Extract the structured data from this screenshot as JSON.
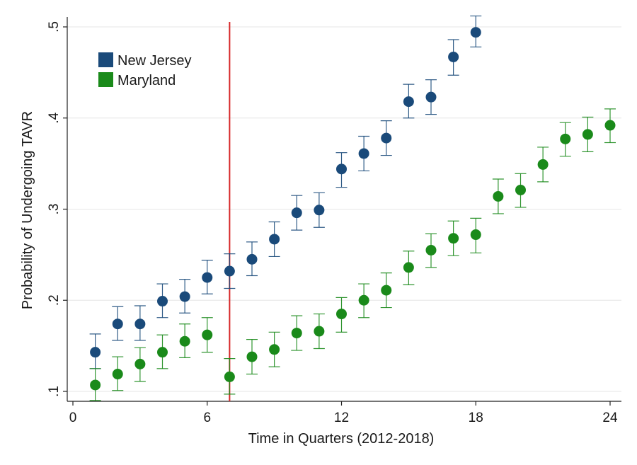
{
  "chart_data": {
    "type": "scatter",
    "title": "",
    "xlabel": "Time in Quarters (2012-2018)",
    "ylabel": "Probability  of Undergoing TAVR",
    "xlim": [
      0,
      24
    ],
    "ylim": [
      0.1,
      0.5
    ],
    "x_ticks": [
      0,
      6,
      12,
      18,
      24
    ],
    "x_tick_labels": [
      "0",
      "6",
      "12",
      "18",
      "24"
    ],
    "y_ticks": [
      0.1,
      0.2,
      0.3,
      0.4,
      0.5
    ],
    "y_tick_labels": [
      ".1",
      ".2",
      ".3",
      ".4",
      ".5"
    ],
    "grid": true,
    "legend_position": "top-left",
    "vertical_line": {
      "x": 7,
      "color": "#d62728"
    },
    "series": [
      {
        "name": "New Jersey",
        "color": "#1a4a7a",
        "points": [
          {
            "x": 1,
            "y": 0.143,
            "lo": 0.125,
            "hi": 0.163
          },
          {
            "x": 2,
            "y": 0.174,
            "lo": 0.156,
            "hi": 0.193
          },
          {
            "x": 3,
            "y": 0.174,
            "lo": 0.156,
            "hi": 0.194
          },
          {
            "x": 4,
            "y": 0.199,
            "lo": 0.181,
            "hi": 0.218
          },
          {
            "x": 5,
            "y": 0.204,
            "lo": 0.186,
            "hi": 0.223
          },
          {
            "x": 6,
            "y": 0.225,
            "lo": 0.207,
            "hi": 0.244
          },
          {
            "x": 7,
            "y": 0.232,
            "lo": 0.213,
            "hi": 0.251
          },
          {
            "x": 8,
            "y": 0.245,
            "lo": 0.227,
            "hi": 0.264
          },
          {
            "x": 9,
            "y": 0.267,
            "lo": 0.248,
            "hi": 0.286
          },
          {
            "x": 10,
            "y": 0.296,
            "lo": 0.277,
            "hi": 0.315
          },
          {
            "x": 11,
            "y": 0.299,
            "lo": 0.28,
            "hi": 0.318
          },
          {
            "x": 12,
            "y": 0.344,
            "lo": 0.324,
            "hi": 0.362
          },
          {
            "x": 13,
            "y": 0.361,
            "lo": 0.342,
            "hi": 0.38
          },
          {
            "x": 14,
            "y": 0.378,
            "lo": 0.359,
            "hi": 0.397
          },
          {
            "x": 15,
            "y": 0.418,
            "lo": 0.4,
            "hi": 0.437
          },
          {
            "x": 16,
            "y": 0.423,
            "lo": 0.404,
            "hi": 0.442
          },
          {
            "x": 17,
            "y": 0.467,
            "lo": 0.447,
            "hi": 0.486
          },
          {
            "x": 18,
            "y": 0.494,
            "lo": 0.478,
            "hi": 0.512
          }
        ]
      },
      {
        "name": "Maryland",
        "color": "#1a8a1a",
        "points": [
          {
            "x": 1,
            "y": 0.107,
            "lo": 0.09,
            "hi": 0.125
          },
          {
            "x": 2,
            "y": 0.119,
            "lo": 0.101,
            "hi": 0.138
          },
          {
            "x": 3,
            "y": 0.13,
            "lo": 0.111,
            "hi": 0.148
          },
          {
            "x": 4,
            "y": 0.143,
            "lo": 0.125,
            "hi": 0.162
          },
          {
            "x": 5,
            "y": 0.155,
            "lo": 0.137,
            "hi": 0.174
          },
          {
            "x": 6,
            "y": 0.162,
            "lo": 0.143,
            "hi": 0.181
          },
          {
            "x": 7,
            "y": 0.116,
            "lo": 0.097,
            "hi": 0.136
          },
          {
            "x": 8,
            "y": 0.138,
            "lo": 0.119,
            "hi": 0.157
          },
          {
            "x": 9,
            "y": 0.146,
            "lo": 0.127,
            "hi": 0.165
          },
          {
            "x": 10,
            "y": 0.164,
            "lo": 0.145,
            "hi": 0.183
          },
          {
            "x": 11,
            "y": 0.166,
            "lo": 0.147,
            "hi": 0.185
          },
          {
            "x": 12,
            "y": 0.185,
            "lo": 0.165,
            "hi": 0.203
          },
          {
            "x": 13,
            "y": 0.2,
            "lo": 0.181,
            "hi": 0.218
          },
          {
            "x": 14,
            "y": 0.211,
            "lo": 0.192,
            "hi": 0.23
          },
          {
            "x": 15,
            "y": 0.236,
            "lo": 0.217,
            "hi": 0.254
          },
          {
            "x": 16,
            "y": 0.255,
            "lo": 0.236,
            "hi": 0.273
          },
          {
            "x": 17,
            "y": 0.268,
            "lo": 0.249,
            "hi": 0.287
          },
          {
            "x": 18,
            "y": 0.272,
            "lo": 0.252,
            "hi": 0.29
          },
          {
            "x": 19,
            "y": 0.314,
            "lo": 0.295,
            "hi": 0.333
          },
          {
            "x": 20,
            "y": 0.321,
            "lo": 0.302,
            "hi": 0.339
          },
          {
            "x": 21,
            "y": 0.349,
            "lo": 0.33,
            "hi": 0.368
          },
          {
            "x": 22,
            "y": 0.377,
            "lo": 0.358,
            "hi": 0.395
          },
          {
            "x": 23,
            "y": 0.382,
            "lo": 0.363,
            "hi": 0.401
          },
          {
            "x": 24,
            "y": 0.392,
            "lo": 0.373,
            "hi": 0.41
          }
        ]
      }
    ]
  }
}
